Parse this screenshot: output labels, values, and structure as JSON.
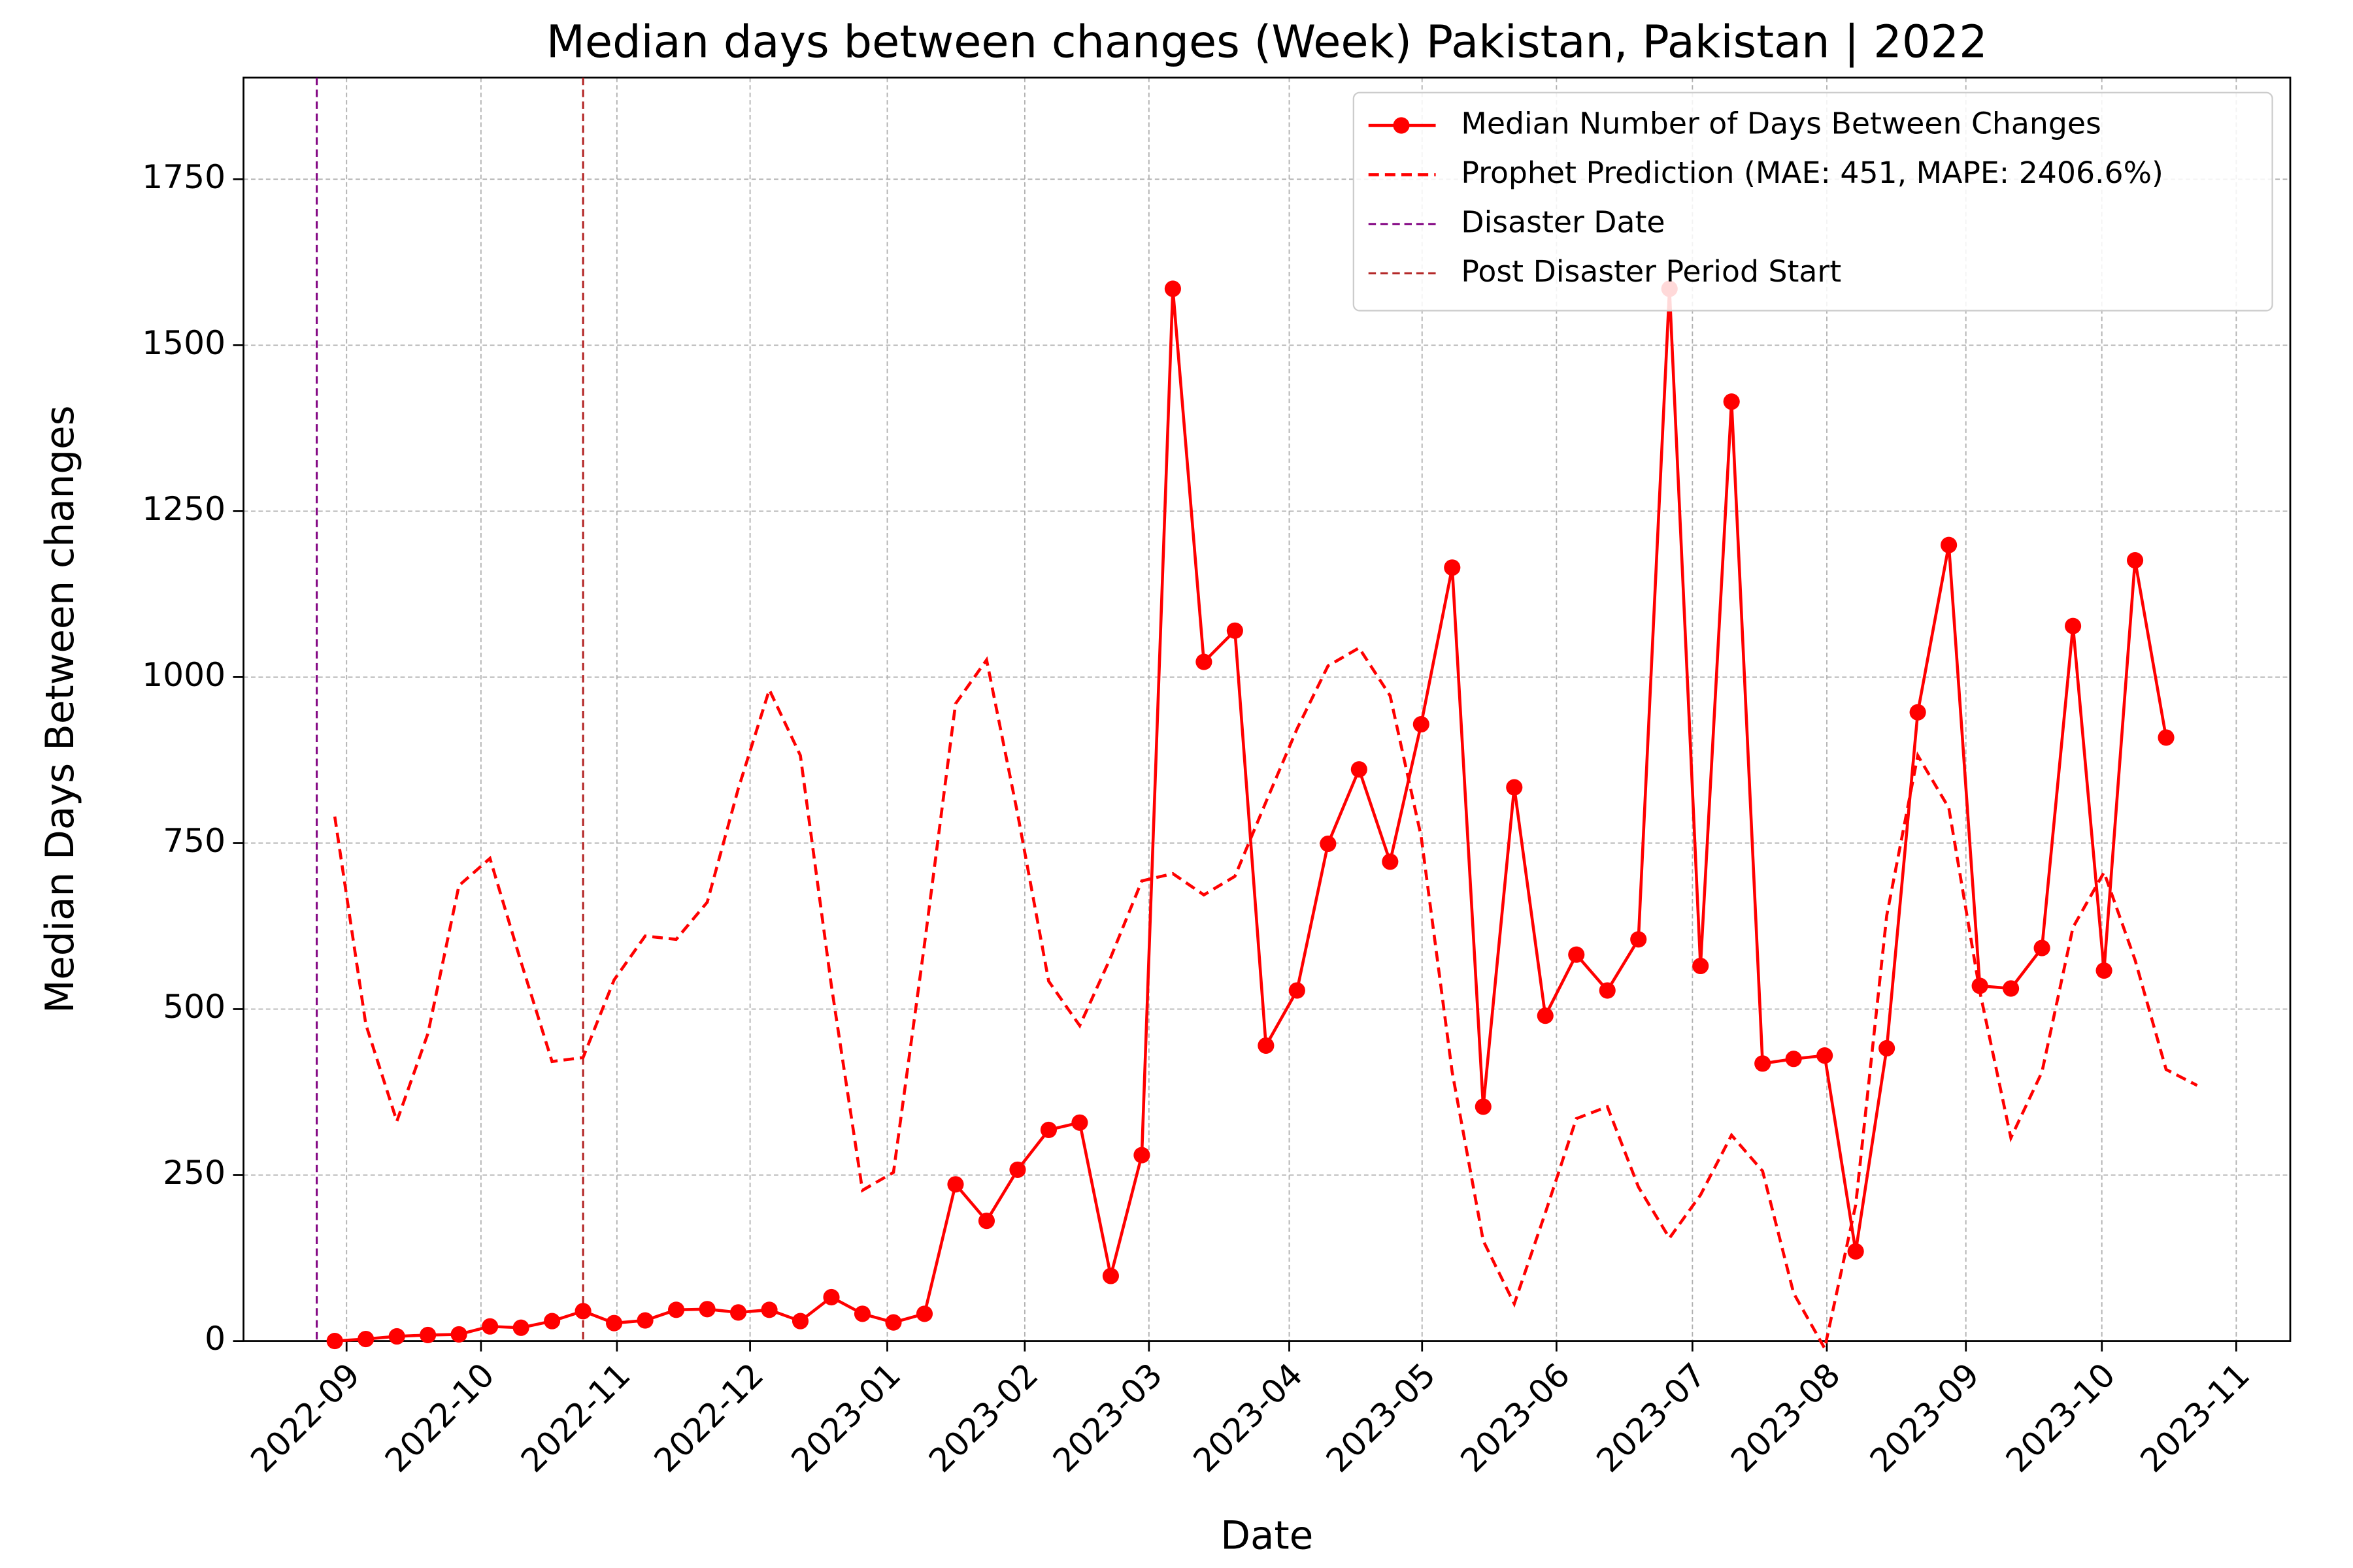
{
  "chart_data": {
    "type": "line",
    "title": "Median days between changes (Week) Pakistan, Pakistan | 2022",
    "x_label": "Date",
    "y_label": "Median Days Between changes",
    "x": [
      0,
      1,
      2,
      3,
      4,
      5,
      6,
      7,
      8,
      9,
      10,
      11,
      12,
      13,
      14,
      15,
      16,
      17,
      18,
      19,
      20,
      21,
      22,
      23,
      24,
      25,
      26,
      27,
      28,
      29,
      30,
      31,
      32,
      33,
      34,
      35,
      36,
      37,
      38,
      39,
      40,
      41,
      42,
      43,
      44,
      45,
      46,
      47,
      48,
      49,
      50,
      51,
      52,
      53,
      54,
      55,
      56,
      57,
      58,
      59,
      60
    ],
    "series": [
      {
        "name": "Median Number of Days Between Changes",
        "color": "#ff0000",
        "style": "solid",
        "markers": true,
        "values": [
          0,
          3,
          7,
          9,
          10,
          22,
          20,
          30,
          45,
          27,
          31,
          47,
          48,
          43,
          47,
          30,
          66,
          41,
          28,
          41,
          236,
          181,
          258,
          318,
          329,
          98,
          280,
          1585,
          1023,
          1070,
          445,
          528,
          749,
          861,
          722,
          929,
          1165,
          353,
          834,
          490,
          582,
          528,
          605,
          1585,
          565,
          1415,
          418,
          425,
          430,
          135,
          441,
          947,
          1199,
          535,
          531,
          592,
          1077,
          558,
          1176,
          909,
          null
        ]
      },
      {
        "name": "Prophet Prediction (MAE: 451, MAPE: 2406.6%)",
        "color": "#ff0000",
        "style": "dashed",
        "markers": false,
        "values": [
          790,
          477,
          331,
          463,
          686,
          727,
          571,
          421,
          427,
          544,
          610,
          605,
          661,
          832,
          981,
          882,
          535,
          227,
          254,
          598,
          960,
          1026,
          794,
          542,
          475,
          578,
          693,
          704,
          672,
          700,
          812,
          922,
          1017,
          1044,
          972,
          760,
          405,
          151,
          56,
          193,
          335,
          353,
          232,
          155,
          220,
          310,
          256,
          72,
          -11,
          205,
          641,
          882,
          803,
          526,
          306,
          405,
          623,
          706,
          574,
          409,
          385
        ]
      }
    ],
    "vlines": [
      {
        "name": "Disaster Date",
        "color": "#800080",
        "x": -0.58
      },
      {
        "name": "Post Disaster Period Start",
        "color": "#b22222",
        "x": 8
      }
    ],
    "xlim": [
      -2.94,
      63.0
    ],
    "xticks": [
      {
        "value": 0.38,
        "label": "2022-09"
      },
      {
        "value": 4.71,
        "label": "2022-10"
      },
      {
        "value": 9.09,
        "label": "2022-11"
      },
      {
        "value": 13.38,
        "label": "2022-12"
      },
      {
        "value": 17.8,
        "label": "2023-01"
      },
      {
        "value": 22.23,
        "label": "2023-02"
      },
      {
        "value": 26.23,
        "label": "2023-03"
      },
      {
        "value": 30.75,
        "label": "2023-04"
      },
      {
        "value": 35.03,
        "label": "2023-05"
      },
      {
        "value": 39.36,
        "label": "2023-06"
      },
      {
        "value": 43.74,
        "label": "2023-07"
      },
      {
        "value": 48.07,
        "label": "2023-08"
      },
      {
        "value": 52.55,
        "label": "2023-09"
      },
      {
        "value": 56.93,
        "label": "2023-10"
      },
      {
        "value": 61.26,
        "label": "2023-11"
      }
    ],
    "ylim": [
      0,
      1903
    ],
    "yticks": [
      0,
      250,
      500,
      750,
      1000,
      1250,
      1500,
      1750
    ],
    "grid": true,
    "legend": "upper right"
  }
}
